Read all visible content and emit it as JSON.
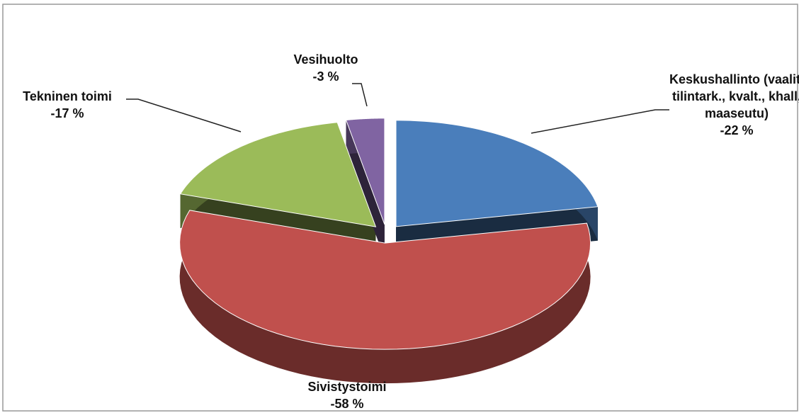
{
  "chart_data": {
    "type": "pie",
    "categories": [
      "Keskushallinto (vaalit, tilintark., kvalt., khall, maaseutu)",
      "Sivistystoimi",
      "Tekninen toimi",
      "Vesihuolto"
    ],
    "values": [
      -22,
      -58,
      -17,
      -3
    ],
    "value_labels": [
      "-22 %",
      "-58 %",
      "-17 %",
      "-3 %"
    ],
    "colors": [
      "#4a7ebb",
      "#c0504d",
      "#9bbb59",
      "#8064a2"
    ]
  }
}
